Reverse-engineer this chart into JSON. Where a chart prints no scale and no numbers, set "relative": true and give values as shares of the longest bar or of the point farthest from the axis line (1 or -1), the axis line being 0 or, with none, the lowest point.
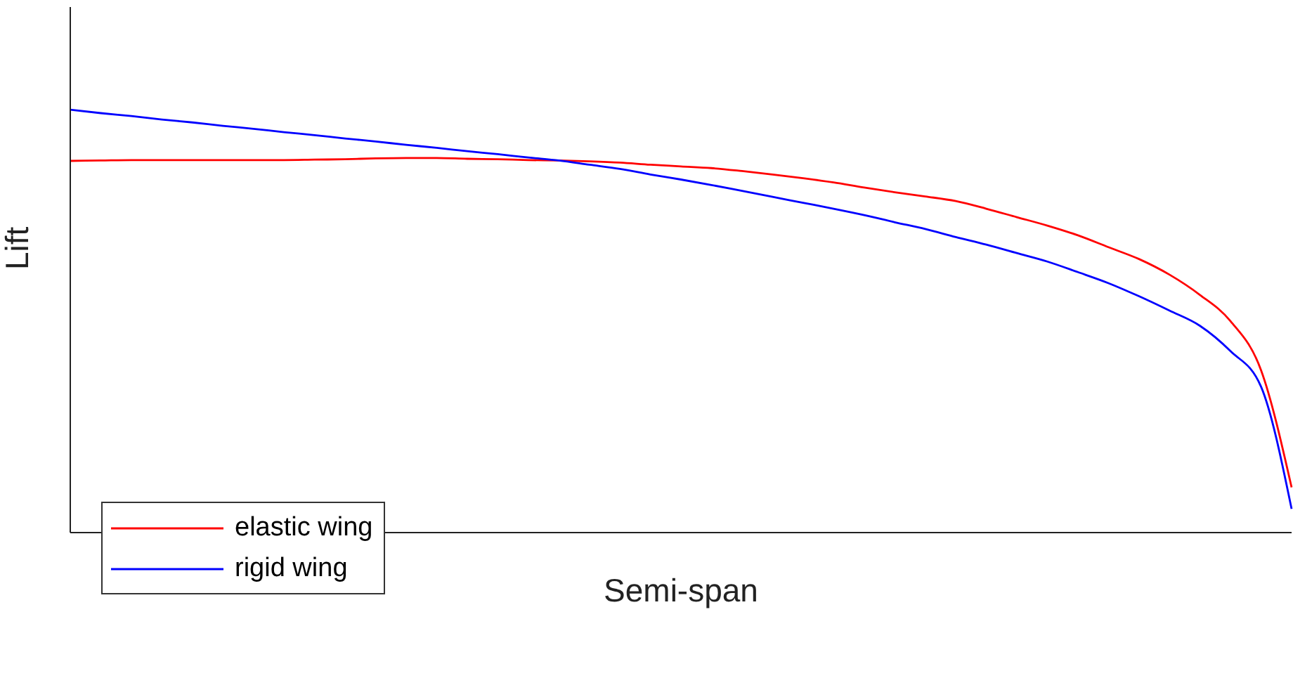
{
  "chart_data": {
    "type": "line",
    "relative": true,
    "xlabel": "Semi-span",
    "ylabel": "Lift",
    "legend": "bottom left",
    "grid": false,
    "marker": "none",
    "line_style": "solid",
    "categories": [
      null,
      null,
      null,
      null,
      null,
      null,
      null,
      null,
      null,
      null,
      null,
      null,
      null,
      null,
      null,
      null,
      null,
      null,
      null,
      null,
      null,
      null,
      null,
      null,
      null,
      null,
      null,
      null,
      null,
      null,
      null,
      null,
      null,
      null,
      null,
      null,
      null,
      null,
      null,
      null,
      null
    ],
    "series": [
      {
        "name": "elastic wing",
        "color": "#ff0000",
        "values": [
          0.879,
          0.88,
          0.881,
          0.881,
          0.881,
          0.881,
          0.881,
          0.881,
          0.882,
          0.883,
          0.885,
          0.886,
          0.886,
          0.884,
          0.883,
          0.881,
          0.88,
          0.878,
          0.875,
          0.87,
          0.866,
          0.862,
          0.855,
          0.847,
          0.838,
          0.828,
          0.816,
          0.805,
          0.795,
          0.784,
          0.766,
          0.746,
          0.726,
          0.703,
          0.675,
          0.647,
          0.61,
          0.562,
          0.5,
          0.384,
          0.107
        ]
      },
      {
        "name": "rigid wing",
        "color": "#0000ff",
        "values": [
          1.0,
          0.992,
          0.985,
          0.977,
          0.97,
          0.962,
          0.955,
          0.947,
          0.94,
          0.932,
          0.925,
          0.917,
          0.91,
          0.902,
          0.895,
          0.887,
          0.88,
          0.87,
          0.86,
          0.847,
          0.835,
          0.822,
          0.808,
          0.794,
          0.78,
          0.766,
          0.751,
          0.734,
          0.718,
          0.699,
          0.681,
          0.661,
          0.641,
          0.616,
          0.59,
          0.559,
          0.525,
          0.489,
          0.429,
          0.345,
          0.056
        ]
      }
    ]
  }
}
